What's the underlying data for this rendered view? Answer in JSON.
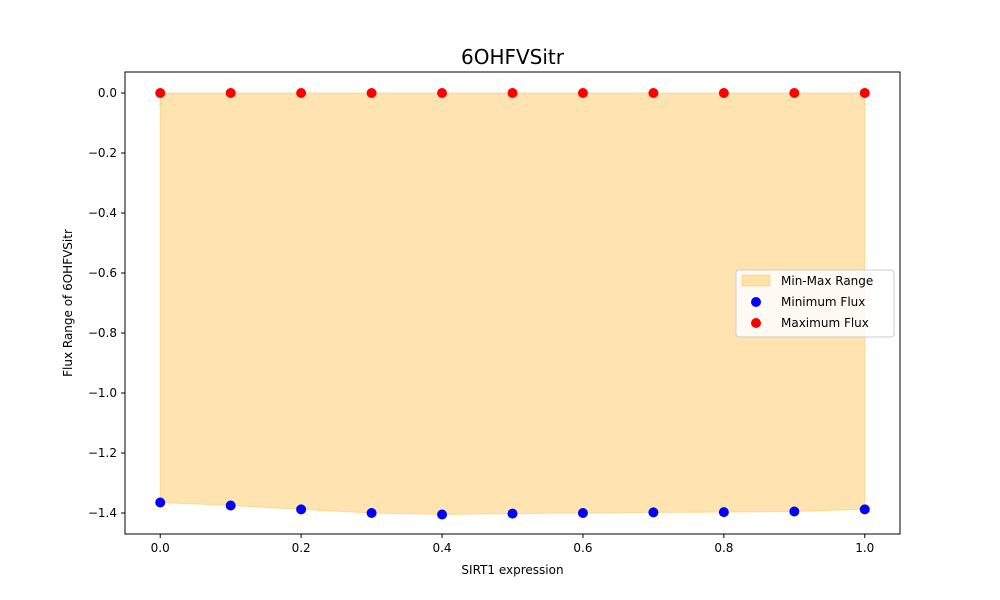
{
  "chart_data": {
    "type": "area",
    "title": "6OHFVSitr",
    "xlabel": "SIRT1 expression",
    "ylabel": "Flux Range of 6OHFVSitr",
    "xlim": [
      -0.05,
      1.05
    ],
    "ylim": [
      -1.47,
      0.07
    ],
    "x_ticks": [
      0.0,
      0.2,
      0.4,
      0.6,
      0.8,
      1.0
    ],
    "x_tick_labels": [
      "0.0",
      "0.2",
      "0.4",
      "0.6",
      "0.8",
      "1.0"
    ],
    "y_ticks": [
      0.0,
      -0.2,
      -0.4,
      -0.6,
      -0.8,
      -1.0,
      -1.2,
      -1.4
    ],
    "y_tick_labels": [
      "0.0",
      "−0.2",
      "−0.4",
      "−0.6",
      "−0.8",
      "−1.0",
      "−1.2",
      "−1.4"
    ],
    "x": [
      0.0,
      0.1,
      0.2,
      0.3,
      0.4,
      0.5,
      0.6,
      0.7,
      0.8,
      0.9,
      1.0
    ],
    "series": [
      {
        "name": "Min-Max Range",
        "kind": "fill_between",
        "color": "#ffa500",
        "lower": [
          -1.365,
          -1.375,
          -1.388,
          -1.4,
          -1.405,
          -1.402,
          -1.4,
          -1.398,
          -1.397,
          -1.395,
          -1.388
        ],
        "upper": [
          0.0,
          0.0,
          0.0,
          0.0,
          0.0,
          0.0,
          0.0,
          0.0,
          0.0,
          0.0,
          0.0
        ]
      },
      {
        "name": "Minimum Flux",
        "kind": "scatter",
        "color": "#0000ff",
        "values": [
          -1.365,
          -1.375,
          -1.388,
          -1.4,
          -1.405,
          -1.402,
          -1.4,
          -1.398,
          -1.397,
          -1.395,
          -1.388
        ]
      },
      {
        "name": "Maximum Flux",
        "kind": "scatter",
        "color": "#ff0000",
        "values": [
          0.0,
          0.0,
          0.0,
          0.0,
          0.0,
          0.0,
          0.0,
          0.0,
          0.0,
          0.0,
          0.0
        ]
      }
    ],
    "legend": {
      "placement": "center-right",
      "entries": [
        "Min-Max Range",
        "Minimum Flux",
        "Maximum Flux"
      ]
    },
    "grid": false
  }
}
